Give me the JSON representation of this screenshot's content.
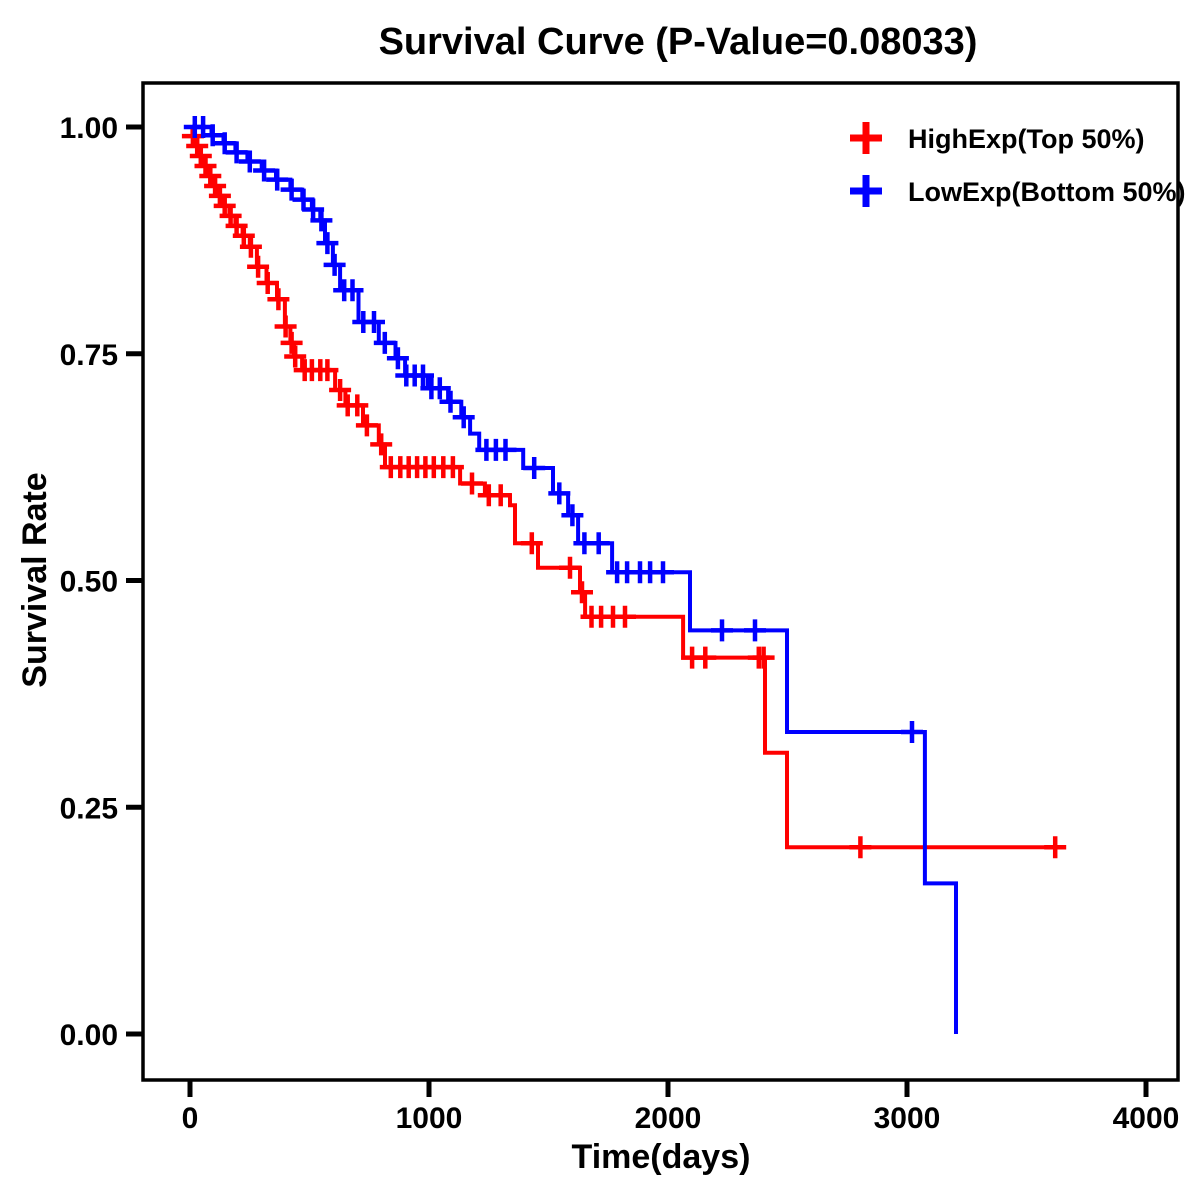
{
  "title": "Survival Curve (P-Value=0.08033)",
  "p_value": "0.08033",
  "chart_data": {
    "type": "line",
    "subtype": "kaplan-meier-step",
    "title": "Survival Curve (P-Value=0.08033)",
    "xlabel": "Time(days)",
    "ylabel": "Survival Rate",
    "xlim": [
      0,
      4000
    ],
    "ylim": [
      0.0,
      1.0
    ],
    "grid": false,
    "legend_position": "top-right",
    "x_ticks": {
      "values": [
        0,
        1000,
        2000,
        3000,
        4000
      ],
      "labels": [
        "0",
        "1000",
        "2000",
        "3000",
        "4000"
      ]
    },
    "y_ticks": {
      "values": [
        0,
        0.25,
        0.5,
        0.75,
        1.0
      ],
      "labels": [
        "0.00",
        "0.25",
        "0.50",
        "0.75",
        "1.00"
      ]
    },
    "series": [
      {
        "name": "HighExp(Top 50%)",
        "color": "#ff0000",
        "start": 1.0,
        "end_time": 3660,
        "drops": [
          [
            10,
            0.99
          ],
          [
            25,
            0.979
          ],
          [
            40,
            0.968
          ],
          [
            60,
            0.957
          ],
          [
            80,
            0.946
          ],
          [
            100,
            0.935
          ],
          [
            120,
            0.924
          ],
          [
            140,
            0.913
          ],
          [
            165,
            0.902
          ],
          [
            190,
            0.891
          ],
          [
            220,
            0.88
          ],
          [
            250,
            0.868
          ],
          [
            280,
            0.846
          ],
          [
            320,
            0.828
          ],
          [
            364,
            0.81
          ],
          [
            397,
            0.78
          ],
          [
            420,
            0.762
          ],
          [
            435,
            0.747
          ],
          [
            469,
            0.732
          ],
          [
            607,
            0.71
          ],
          [
            650,
            0.693
          ],
          [
            724,
            0.671
          ],
          [
            790,
            0.65
          ],
          [
            816,
            0.625
          ],
          [
            1130,
            0.607
          ],
          [
            1234,
            0.594
          ],
          [
            1339,
            0.583
          ],
          [
            1360,
            0.541
          ],
          [
            1456,
            0.514
          ],
          [
            1632,
            0.487
          ],
          [
            1653,
            0.46
          ],
          [
            2063,
            0.415
          ],
          [
            2406,
            0.31
          ],
          [
            2498,
            0.206
          ]
        ],
        "censor_times": [
          12,
          30,
          45,
          65,
          85,
          105,
          125,
          145,
          170,
          195,
          225,
          255,
          285,
          325,
          370,
          400,
          425,
          440,
          480,
          510,
          545,
          575,
          628,
          660,
          700,
          740,
          800,
          840,
          880,
          915,
          950,
          985,
          1020,
          1060,
          1100,
          1180,
          1250,
          1300,
          1430,
          1590,
          1640,
          1680,
          1720,
          1770,
          1820,
          2101,
          2156,
          2380,
          2400,
          2805,
          3620
        ]
      },
      {
        "name": "LowExp(Bottom 50%)",
        "color": "#0000ff",
        "start": 1.0,
        "end_time": 3205,
        "drops": [
          [
            90,
            0.991
          ],
          [
            140,
            0.982
          ],
          [
            190,
            0.972
          ],
          [
            240,
            0.962
          ],
          [
            300,
            0.952
          ],
          [
            360,
            0.942
          ],
          [
            420,
            0.931
          ],
          [
            470,
            0.92
          ],
          [
            510,
            0.909
          ],
          [
            545,
            0.897
          ],
          [
            565,
            0.872
          ],
          [
            598,
            0.848
          ],
          [
            628,
            0.82
          ],
          [
            705,
            0.785
          ],
          [
            790,
            0.762
          ],
          [
            860,
            0.745
          ],
          [
            900,
            0.726
          ],
          [
            995,
            0.712
          ],
          [
            1080,
            0.697
          ],
          [
            1135,
            0.68
          ],
          [
            1172,
            0.662
          ],
          [
            1210,
            0.644
          ],
          [
            1394,
            0.624
          ],
          [
            1519,
            0.596
          ],
          [
            1582,
            0.572
          ],
          [
            1624,
            0.541
          ],
          [
            1766,
            0.509
          ],
          [
            2092,
            0.445
          ],
          [
            2498,
            0.333
          ],
          [
            3075,
            0.166
          ],
          [
            3205,
            0.0
          ]
        ],
        "censor_times": [
          20,
          55,
          95,
          145,
          195,
          250,
          310,
          365,
          425,
          475,
          515,
          550,
          575,
          605,
          645,
          680,
          725,
          770,
          815,
          870,
          905,
          940,
          975,
          1010,
          1045,
          1090,
          1145,
          1240,
          1280,
          1320,
          1440,
          1545,
          1600,
          1650,
          1710,
          1787,
          1829,
          1883,
          1925,
          1979,
          2226,
          2364,
          3021
        ]
      }
    ]
  }
}
